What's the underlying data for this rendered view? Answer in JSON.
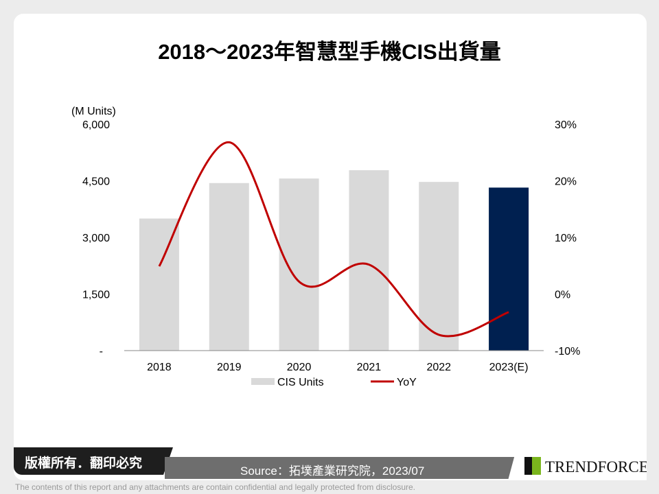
{
  "title": "2018～2023年智慧型手機CIS出貨量",
  "chart_data": {
    "type": "bar+line",
    "categories": [
      "2018",
      "2019",
      "2020",
      "2021",
      "2022",
      "2023(E)"
    ],
    "series": [
      {
        "name": "CIS Units",
        "type": "bar",
        "axis": "left",
        "values": [
          3500,
          4440,
          4560,
          4780,
          4470,
          4320
        ],
        "colors": [
          "#d9d9d9",
          "#d9d9d9",
          "#d9d9d9",
          "#d9d9d9",
          "#d9d9d9",
          "#002050"
        ]
      },
      {
        "name": "YoY",
        "type": "line",
        "axis": "right",
        "values": [
          4.9,
          26.8,
          2.2,
          5.2,
          -7.2,
          -3.2
        ],
        "color": "#c00000",
        "unit": "%"
      }
    ],
    "ylabel": "(M Units)",
    "ylim": [
      0,
      6000
    ],
    "yticks": [
      "-",
      "1,500",
      "3,000",
      "4,500",
      "6,000"
    ],
    "y2lim": [
      -10,
      30
    ],
    "y2ticks": [
      "-10%",
      "0%",
      "10%",
      "20%",
      "30%"
    ],
    "grid": false,
    "legend": "bottom"
  },
  "footer": {
    "copyright": "版權所有．翻印必究",
    "source": "Source：拓墣產業研究院，2023/07",
    "brand": "TRENDFORCE",
    "disclaimer": "The contents of this report and any attachments are contain confidential and legally protected from disclosure."
  }
}
